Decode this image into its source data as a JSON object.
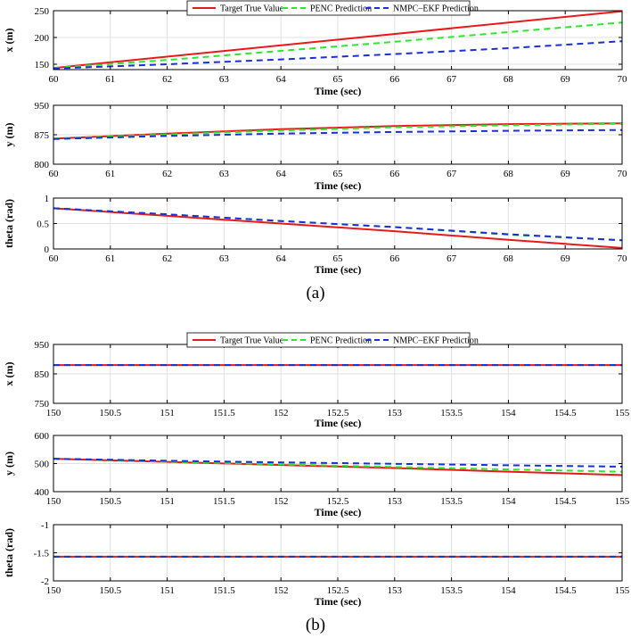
{
  "colors": {
    "true": "#e8191b",
    "penc": "#2be82b",
    "nmpc": "#1a2fd6",
    "grid": "#e0e0e0",
    "axis": "#000000"
  },
  "chart_data": [
    {
      "type": "line",
      "caption": "(a)",
      "legend": [
        "Target True Value",
        "PENC Prediction",
        "NMPC–EKF Prediction"
      ],
      "subplots": [
        {
          "ylabel": "x (m)",
          "xlabel": "Time (sec)",
          "xlim": [
            60,
            70
          ],
          "ylim": [
            140,
            250
          ],
          "xticks": [
            60,
            61,
            62,
            63,
            64,
            65,
            66,
            67,
            68,
            69,
            70
          ],
          "xtick_labels": [
            "60",
            "61",
            "62",
            "63",
            "64",
            "65",
            "66",
            "67",
            "68",
            "69",
            "70"
          ],
          "yticks": [
            150,
            200,
            250
          ],
          "ytick_labels": [
            "150",
            "200",
            "250"
          ],
          "series": [
            {
              "name": "Target True Value",
              "key": "true",
              "x": [
                60,
                70
              ],
              "y": [
                143,
                249
              ]
            },
            {
              "name": "PENC Prediction",
              "key": "penc",
              "x": [
                60,
                62,
                64,
                66,
                68,
                70
              ],
              "y": [
                143,
                158,
                175,
                192,
                210,
                228
              ]
            },
            {
              "name": "NMPC–EKF Prediction",
              "key": "nmpc",
              "x": [
                60,
                62,
                64,
                66,
                68,
                70
              ],
              "y": [
                142,
                150,
                159,
                169,
                180,
                193
              ]
            }
          ]
        },
        {
          "ylabel": "y (m)",
          "xlabel": "Time (sec)",
          "xlim": [
            60,
            70
          ],
          "ylim": [
            800,
            950
          ],
          "xticks": [
            60,
            61,
            62,
            63,
            64,
            65,
            66,
            67,
            68,
            69,
            70
          ],
          "xtick_labels": [
            "60",
            "61",
            "62",
            "63",
            "64",
            "65",
            "66",
            "67",
            "68",
            "69",
            "70"
          ],
          "yticks": [
            800,
            875,
            950
          ],
          "ytick_labels": [
            "800",
            "875",
            "950"
          ],
          "series": [
            {
              "name": "Target True Value",
              "key": "true",
              "x": [
                60,
                62,
                64,
                66,
                68,
                70
              ],
              "y": [
                865,
                878,
                889,
                897,
                902,
                904
              ]
            },
            {
              "name": "PENC Prediction",
              "key": "penc",
              "x": [
                60,
                62,
                64,
                66,
                68,
                70
              ],
              "y": [
                865,
                876,
                886,
                894,
                899,
                903
              ]
            },
            {
              "name": "NMPC–EKF Prediction",
              "key": "nmpc",
              "x": [
                60,
                62,
                64,
                66,
                68,
                70
              ],
              "y": [
                864,
                872,
                878,
                882,
                885,
                887
              ]
            }
          ]
        },
        {
          "ylabel": "theta (rad)",
          "xlabel": "Time (sec)",
          "xlim": [
            60,
            70
          ],
          "ylim": [
            0,
            1
          ],
          "xticks": [
            60,
            61,
            62,
            63,
            64,
            65,
            66,
            67,
            68,
            69,
            70
          ],
          "xtick_labels": [
            "60",
            "61",
            "62",
            "63",
            "64",
            "65",
            "66",
            "67",
            "68",
            "69",
            "70"
          ],
          "yticks": [
            0,
            0.5,
            1
          ],
          "ytick_labels": [
            "0",
            "0.5",
            "1"
          ],
          "series": [
            {
              "name": "Target True Value",
              "key": "true",
              "x": [
                60,
                62,
                64,
                66,
                68,
                70
              ],
              "y": [
                0.8,
                0.65,
                0.5,
                0.35,
                0.18,
                0.02
              ]
            },
            {
              "name": "PENC Prediction",
              "key": "penc",
              "x": [
                60,
                62,
                64,
                66,
                68,
                70
              ],
              "y": [
                0.8,
                0.68,
                0.55,
                0.43,
                0.28,
                0.17
              ]
            },
            {
              "name": "NMPC–EKF Prediction",
              "key": "nmpc",
              "x": [
                60,
                62,
                64,
                66,
                68,
                70
              ],
              "y": [
                0.8,
                0.68,
                0.55,
                0.43,
                0.29,
                0.17
              ]
            }
          ]
        }
      ]
    },
    {
      "type": "line",
      "caption": "(b)",
      "legend": [
        "Target True Value",
        "PENC Prediction",
        "NMPC–EKF Prediction"
      ],
      "subplots": [
        {
          "ylabel": "x (m)",
          "xlabel": "Time (sec)",
          "xlim": [
            150,
            155
          ],
          "ylim": [
            750,
            950
          ],
          "xticks": [
            150,
            150.5,
            151,
            151.5,
            152,
            152.5,
            153,
            153.5,
            154,
            154.5,
            155
          ],
          "xtick_labels": [
            "150",
            "150.5",
            "151",
            "151.5",
            "152",
            "152.5",
            "153",
            "153.5",
            "154",
            "154.5",
            "155"
          ],
          "yticks": [
            750,
            850,
            950
          ],
          "ytick_labels": [
            "750",
            "850",
            "950"
          ],
          "series": [
            {
              "name": "Target True Value",
              "key": "true",
              "x": [
                150,
                155
              ],
              "y": [
                880,
                880
              ]
            },
            {
              "name": "PENC Prediction",
              "key": "penc",
              "x": [
                150,
                155
              ],
              "y": [
                880,
                880
              ]
            },
            {
              "name": "NMPC–EKF Prediction",
              "key": "nmpc",
              "x": [
                150,
                155
              ],
              "y": [
                880,
                880
              ]
            }
          ]
        },
        {
          "ylabel": "y (m)",
          "xlabel": "Time (sec)",
          "xlim": [
            150,
            155
          ],
          "ylim": [
            400,
            600
          ],
          "xticks": [
            150,
            150.5,
            151,
            151.5,
            152,
            152.5,
            153,
            153.5,
            154,
            154.5,
            155
          ],
          "xtick_labels": [
            "150",
            "150.5",
            "151",
            "151.5",
            "152",
            "152.5",
            "153",
            "153.5",
            "154",
            "154.5",
            "155"
          ],
          "yticks": [
            400,
            500,
            600
          ],
          "ytick_labels": [
            "400",
            "500",
            "600"
          ],
          "series": [
            {
              "name": "Target True Value",
              "key": "true",
              "x": [
                150,
                151,
                152,
                153,
                154,
                155
              ],
              "y": [
                517,
                506,
                495,
                484,
                471,
                459
              ]
            },
            {
              "name": "PENC Prediction",
              "key": "penc",
              "x": [
                150,
                151,
                152,
                153,
                154,
                155
              ],
              "y": [
                517,
                507,
                497,
                488,
                479,
                471
              ]
            },
            {
              "name": "NMPC–EKF Prediction",
              "key": "nmpc",
              "x": [
                150,
                151,
                152,
                153,
                154,
                155
              ],
              "y": [
                517,
                510,
                504,
                499,
                494,
                489
              ]
            }
          ]
        },
        {
          "ylabel": "theta (rad)",
          "xlabel": "Time (sec)",
          "xlim": [
            150,
            155
          ],
          "ylim": [
            -2,
            -1
          ],
          "xticks": [
            150,
            150.5,
            151,
            151.5,
            152,
            152.5,
            153,
            153.5,
            154,
            154.5,
            155
          ],
          "xtick_labels": [
            "150",
            "150.5",
            "151",
            "151.5",
            "152",
            "152.5",
            "153",
            "153.5",
            "154",
            "154.5",
            "155"
          ],
          "yticks": [
            -2,
            -1.5,
            -1
          ],
          "ytick_labels": [
            "-2",
            "-1.5",
            "-1"
          ],
          "series": [
            {
              "name": "Target True Value",
              "key": "true",
              "x": [
                150,
                155
              ],
              "y": [
                -1.57,
                -1.57
              ]
            },
            {
              "name": "PENC Prediction",
              "key": "penc",
              "x": [
                150,
                155
              ],
              "y": [
                -1.57,
                -1.57
              ]
            },
            {
              "name": "NMPC–EKF Prediction",
              "key": "nmpc",
              "x": [
                150,
                155
              ],
              "y": [
                -1.57,
                -1.57
              ]
            }
          ]
        }
      ]
    }
  ]
}
